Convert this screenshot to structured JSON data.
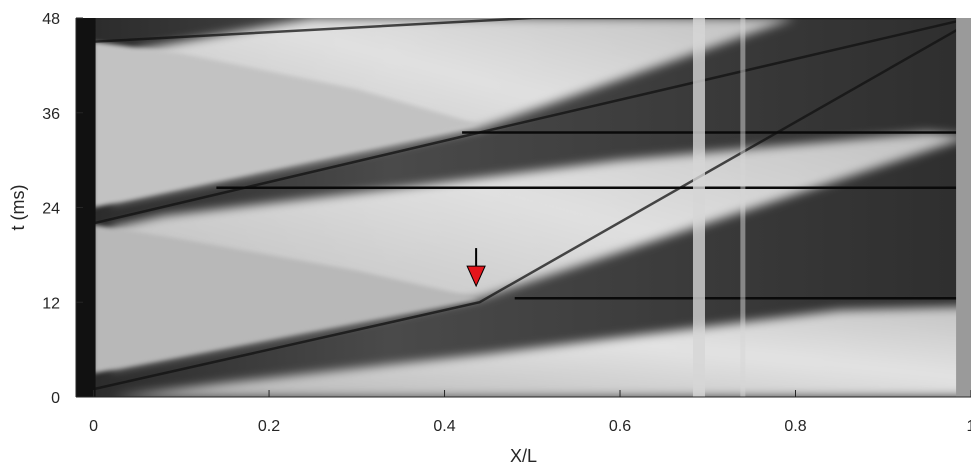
{
  "chart_data": {
    "type": "heatmap",
    "description_kind": "grayscale x-t diagram",
    "xlabel": "X/L",
    "ylabel": "t (ms)",
    "xlim": [
      -0.02,
      1.0
    ],
    "ylim": [
      0,
      48
    ],
    "xticks": [
      {
        "value": 0,
        "label": "0"
      },
      {
        "value": 0.2,
        "label": "0.2"
      },
      {
        "value": 0.4,
        "label": "0.4"
      },
      {
        "value": 0.6,
        "label": "0.6"
      },
      {
        "value": 0.8,
        "label": "0.8"
      },
      {
        "value": 1.0,
        "label": "1"
      }
    ],
    "yticks": [
      {
        "value": 0,
        "label": "0"
      },
      {
        "value": 12,
        "label": "12"
      },
      {
        "value": 24,
        "label": "24"
      },
      {
        "value": 36,
        "label": "36"
      },
      {
        "value": 48,
        "label": "48"
      }
    ],
    "grid": false,
    "colormap": "gray",
    "dark_horizontal_lines_t": [
      12.5,
      26.5,
      33.5
    ],
    "bright_vertical_bands_x": [
      0.69,
      0.74
    ],
    "wave_fronts": [
      {
        "x": [
          0.0,
          0.44,
          1.0
        ],
        "t": [
          1.0,
          12.0,
          47.5
        ]
      },
      {
        "x": [
          0.0,
          0.44,
          1.0
        ],
        "t": [
          22.0,
          33.5,
          48.0
        ]
      },
      {
        "x": [
          0.0,
          0.5,
          1.0
        ],
        "t": [
          45.0,
          48.0,
          48.0
        ]
      }
    ],
    "annotations": [
      {
        "type": "arrow",
        "color": "#e5141b",
        "x": 0.436,
        "t": 14.3
      }
    ]
  }
}
